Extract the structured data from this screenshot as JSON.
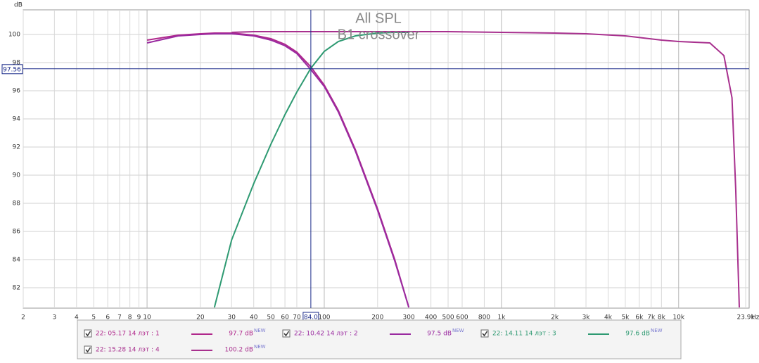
{
  "chart_data": {
    "type": "line",
    "title": "All SPL",
    "subtitle": "B1 crossover",
    "y_label": "dB",
    "x_label": "Hz",
    "log_x": true,
    "grid": true,
    "xlim": [
      2,
      25000
    ],
    "ylim": [
      80.55,
      101.75
    ],
    "yticks": [
      82,
      84,
      86,
      88,
      90,
      92,
      94,
      96,
      98,
      100
    ],
    "xticks": [
      2,
      3,
      4,
      5,
      6,
      7,
      8,
      9,
      10,
      20,
      30,
      40,
      50,
      60,
      70,
      100,
      200,
      300,
      400,
      500,
      600,
      800,
      {
        "value": 1000,
        "label": "1k"
      },
      {
        "value": 2000,
        "label": "2k"
      },
      {
        "value": 3000,
        "label": "3k"
      },
      {
        "value": 4000,
        "label": "4k"
      },
      {
        "value": 5000,
        "label": "5k"
      },
      {
        "value": 6000,
        "label": "6k"
      },
      {
        "value": 7000,
        "label": "7k"
      },
      {
        "value": 8000,
        "label": "8k"
      },
      {
        "value": 10000,
        "label": "10k"
      },
      {
        "value": 23900,
        "label": "23.9k"
      }
    ],
    "cursor": {
      "x": {
        "value": 84.0,
        "label": "84.0"
      },
      "y": {
        "value": 97.56,
        "label": "97.56"
      },
      "color": "#1a2a8a"
    },
    "legend_badge": "NEW",
    "x": [
      10,
      15,
      20,
      24,
      30,
      40,
      50,
      60,
      70,
      84,
      100,
      120,
      150,
      200,
      250,
      300,
      500,
      1000,
      2000,
      3000,
      5000,
      8000,
      10000,
      15000,
      18000,
      20000,
      21000,
      22000
    ],
    "series": [
      {
        "name": "22: 05.17 14 лэт : 1",
        "color": "#b0288c",
        "legend_value": "97.7 dB",
        "values": [
          99.6,
          99.95,
          100.05,
          100.1,
          100.1,
          99.95,
          99.7,
          99.3,
          98.75,
          97.7,
          96.4,
          94.6,
          91.8,
          87.6,
          84.0,
          80.6,
          null,
          null,
          null,
          null,
          null,
          null,
          null,
          null,
          null,
          null,
          null,
          null
        ]
      },
      {
        "name": "22: 10.42 14 лэт : 2",
        "color": "#9a2aa0",
        "legend_value": "97.5 dB",
        "values": [
          99.4,
          99.9,
          100.0,
          100.05,
          100.05,
          99.9,
          99.6,
          99.2,
          98.65,
          97.5,
          96.3,
          94.5,
          91.7,
          87.5,
          83.9,
          80.6,
          null,
          null,
          null,
          null,
          null,
          null,
          null,
          null,
          null,
          null,
          null,
          null
        ]
      },
      {
        "name": "22: 14.11 14 лэт : 3",
        "color": "#2e9a72",
        "legend_value": "97.6 dB",
        "values": [
          null,
          null,
          null,
          80.6,
          85.4,
          89.4,
          92.2,
          94.3,
          95.9,
          97.6,
          98.8,
          99.5,
          99.9,
          100.1,
          100.15,
          100.15,
          null,
          null,
          null,
          null,
          null,
          null,
          null,
          null,
          null,
          null,
          null,
          null
        ]
      },
      {
        "name": "22: 15.28 14 лэт : 4",
        "color": "#a8308e",
        "legend_value": "100.2 dB",
        "values": [
          null,
          null,
          null,
          null,
          100.15,
          100.2,
          100.2,
          100.2,
          100.2,
          100.2,
          100.2,
          100.2,
          100.2,
          100.2,
          100.2,
          100.2,
          100.2,
          100.15,
          100.1,
          100.05,
          99.9,
          99.6,
          99.5,
          99.4,
          98.5,
          95.5,
          89,
          80.6
        ]
      }
    ]
  }
}
